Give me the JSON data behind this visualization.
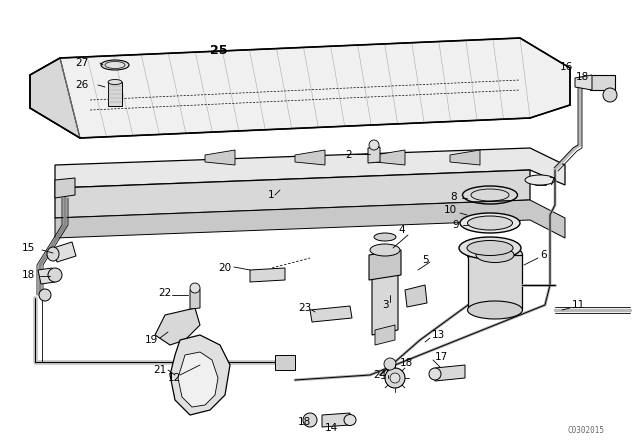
{
  "bg_color": "#ffffff",
  "line_color": "#000000",
  "fig_width": 6.4,
  "fig_height": 4.48,
  "dpi": 100,
  "watermark": "C0302015",
  "cover_color": "#f5f5f5",
  "rail_color": "#eeeeee",
  "part_color": "#e8e8e8",
  "shadow_color": "#cccccc"
}
